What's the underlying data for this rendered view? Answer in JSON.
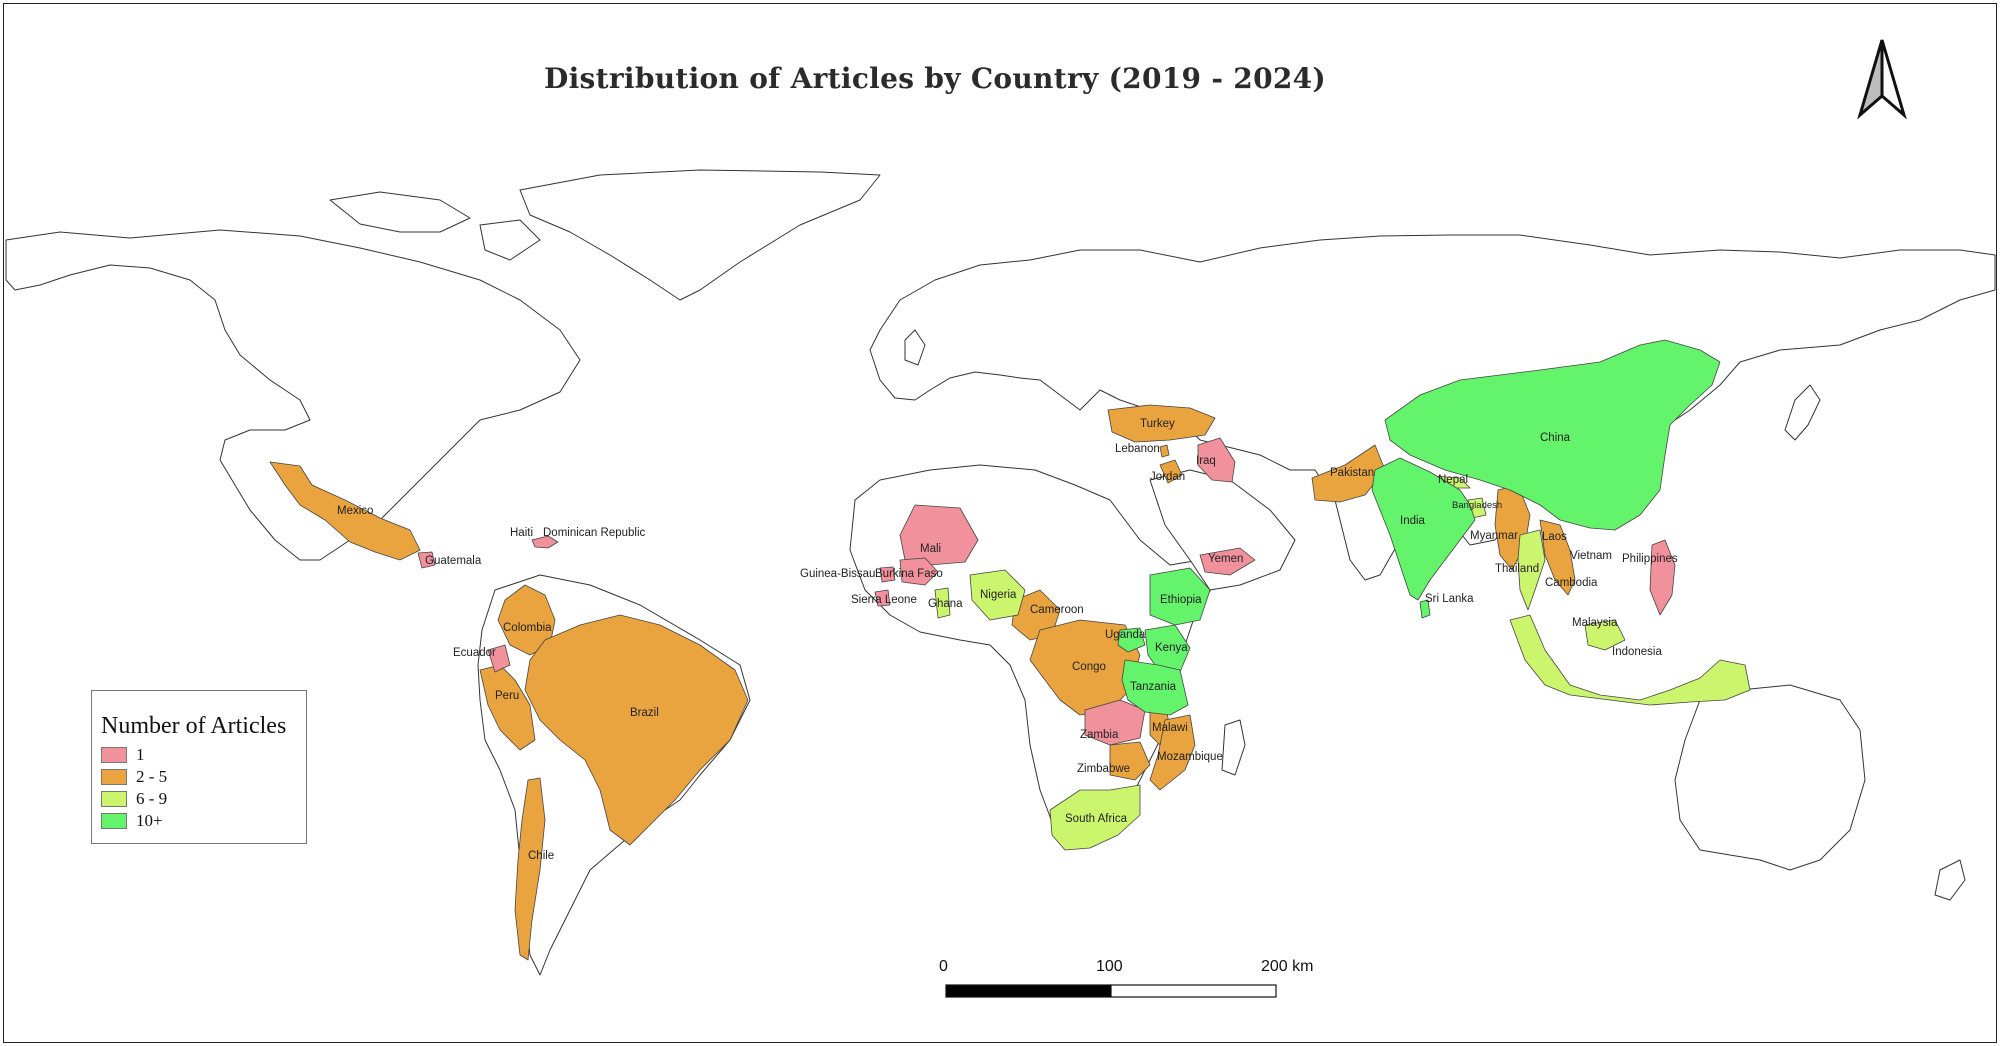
{
  "title": "Distribution of Articles by Country (2019 - 2024)",
  "legend": {
    "title": "Number of Articles",
    "items": [
      {
        "label": "1",
        "color": "#f0919c"
      },
      {
        "label": "2 - 5",
        "color": "#e9a43f"
      },
      {
        "label": "6 - 9",
        "color": "#ccf56e"
      },
      {
        "label": "10+",
        "color": "#63f46c"
      }
    ]
  },
  "scale_bar": {
    "start": "0",
    "mid": "100",
    "end": "200 km"
  },
  "north_arrow": {
    "icon": "north-arrow-icon"
  },
  "country_labels": {
    "mexico": "Mexico",
    "guatemala": "Guatemala",
    "haiti": "Haiti",
    "dominican": "Dominican Republic",
    "colombia": "Colombia",
    "ecuador": "Ecuador",
    "peru": "Peru",
    "brazil": "Brazil",
    "chile": "Chile",
    "mali": "Mali",
    "guinea_bissau": "Guinea-Bissau",
    "burkina": "Burkina Faso",
    "sierra": "Sierra Leone",
    "ghana": "Ghana",
    "nigeria": "Nigeria",
    "cameroon": "Cameroon",
    "congo": "Congo",
    "ethiopia": "Ethiopia",
    "uganda": "Uganda",
    "kenya": "Kenya",
    "tanzania": "Tanzania",
    "zambia": "Zambia",
    "malawi": "Malawi",
    "mozambique": "Mozambique",
    "zimbabwe": "Zimbabwe",
    "south_africa": "South Africa",
    "turkey": "Turkey",
    "lebanon": "Lebanon",
    "jordan": "Jordan",
    "iraq": "Iraq",
    "yemen": "Yemen",
    "pakistan": "Pakistan",
    "india": "India",
    "nepal": "Nepal",
    "bangladesh": "Bangladesh",
    "sri_lanka": "Sri Lanka",
    "china": "China",
    "myanmar": "Myanmar",
    "laos": "Laos",
    "vietnam": "Vietnam",
    "thailand": "Thailand",
    "cambodia": "Cambodia",
    "philippines": "Philippines",
    "malaysia": "Malaysia",
    "indonesia": "Indonesia"
  },
  "country_counts": {
    "1": [
      "Guatemala",
      "Haiti",
      "Dominican Republic",
      "Ecuador",
      "Mali",
      "Burkina Faso",
      "Sierra Leone",
      "Guinea-Bissau",
      "Iraq",
      "Yemen",
      "Zambia",
      "Philippines"
    ],
    "2 - 5": [
      "Mexico",
      "Colombia",
      "Peru",
      "Brazil",
      "Chile",
      "Cameroon",
      "Congo",
      "Malawi",
      "Mozambique",
      "Zimbabwe",
      "Turkey",
      "Lebanon",
      "Jordan",
      "Pakistan",
      "Myanmar",
      "Laos",
      "Vietnam",
      "Cambodia"
    ],
    "6 - 9": [
      "Ghana",
      "Nigeria",
      "South Africa",
      "Nepal",
      "Bangladesh",
      "Thailand",
      "Malaysia",
      "Indonesia"
    ],
    "10+": [
      "Ethiopia",
      "Uganda",
      "Kenya",
      "Tanzania",
      "India",
      "Sri Lanka",
      "China"
    ]
  }
}
